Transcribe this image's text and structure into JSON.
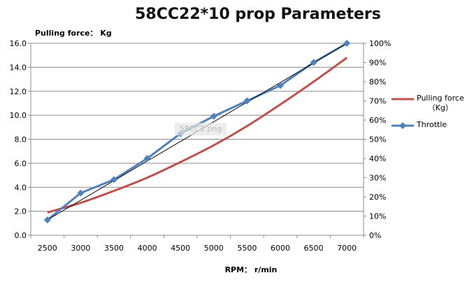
{
  "chart_data": {
    "type": "line",
    "title": "58CC22*10 prop Parameters",
    "ylabel": "Pulling force： Kg",
    "xlabel": "RPM： r/min",
    "categories": [
      "2500",
      "3000",
      "3500",
      "4000",
      "4500",
      "5000",
      "5500",
      "6000",
      "6500",
      "7000"
    ],
    "y_left": {
      "ylim": [
        0,
        16
      ],
      "ticks": [
        "0.0",
        "2.0",
        "4.0",
        "6.0",
        "8.0",
        "10.0",
        "12.0",
        "14.0",
        "16.0"
      ]
    },
    "y_right": {
      "ylim": [
        0,
        100
      ],
      "ticks": [
        "0%",
        "10%",
        "20%",
        "30%",
        "40%",
        "50%",
        "60%",
        "70%",
        "80%",
        "90%",
        "100%"
      ]
    },
    "series": [
      {
        "name": "Pulling force （Kg）",
        "axis": "left",
        "color": "#c0504d",
        "marker": "none",
        "values": [
          1.9,
          2.7,
          3.7,
          4.8,
          6.1,
          7.5,
          9.1,
          10.9,
          12.8,
          14.8
        ]
      },
      {
        "name": "Throttle",
        "axis": "right",
        "color": "#4f81bd",
        "marker": "diamond",
        "values": [
          8,
          22,
          29,
          40,
          53,
          62,
          70,
          78,
          90,
          100
        ]
      }
    ],
    "trendline": {
      "color": "#000000",
      "from": 8,
      "to": 100
    },
    "grid": true,
    "legend": "right",
    "legend_labels": {
      "pulling_line1": "Pulling force",
      "pulling_line2": "（Kg）",
      "throttle": "Throttle"
    },
    "watermark": "58CC1.png"
  }
}
